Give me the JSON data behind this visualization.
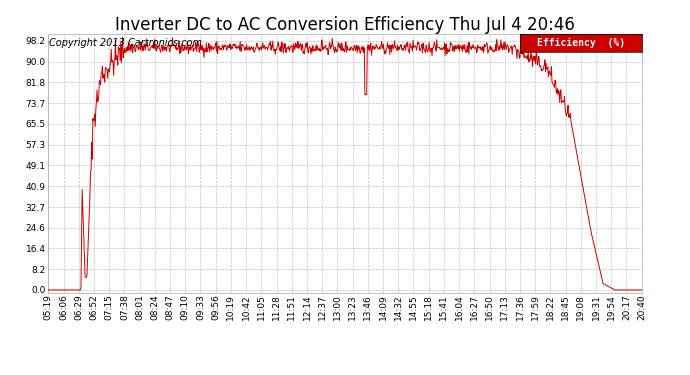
{
  "title": "Inverter DC to AC Conversion Efficiency Thu Jul 4 20:46",
  "copyright": "Copyright 2013 Cartronics.com",
  "legend_label": "Efficiency  (%)",
  "legend_bg": "#cc0000",
  "legend_fg": "#ffffff",
  "line_color": "#cc0000",
  "bg_color": "#ffffff",
  "plot_bg": "#ffffff",
  "grid_color": "#c0c0c0",
  "yticks": [
    0.0,
    8.2,
    16.4,
    24.6,
    32.7,
    40.9,
    49.1,
    57.3,
    65.5,
    73.7,
    81.8,
    90.0,
    98.2
  ],
  "ylim": [
    -1.0,
    101.0
  ],
  "x_tick_labels": [
    "05:19",
    "06:06",
    "06:29",
    "06:52",
    "07:15",
    "07:38",
    "08:01",
    "08:24",
    "08:47",
    "09:10",
    "09:33",
    "09:56",
    "10:19",
    "10:42",
    "11:05",
    "11:28",
    "11:51",
    "12:14",
    "12:37",
    "13:00",
    "13:23",
    "13:46",
    "14:09",
    "14:32",
    "14:55",
    "15:18",
    "15:41",
    "16:04",
    "16:27",
    "16:50",
    "17:13",
    "17:36",
    "17:59",
    "18:22",
    "18:45",
    "19:08",
    "19:31",
    "19:54",
    "20:17",
    "20:40"
  ],
  "title_fontsize": 12,
  "tick_fontsize": 6.5,
  "copyright_fontsize": 7
}
